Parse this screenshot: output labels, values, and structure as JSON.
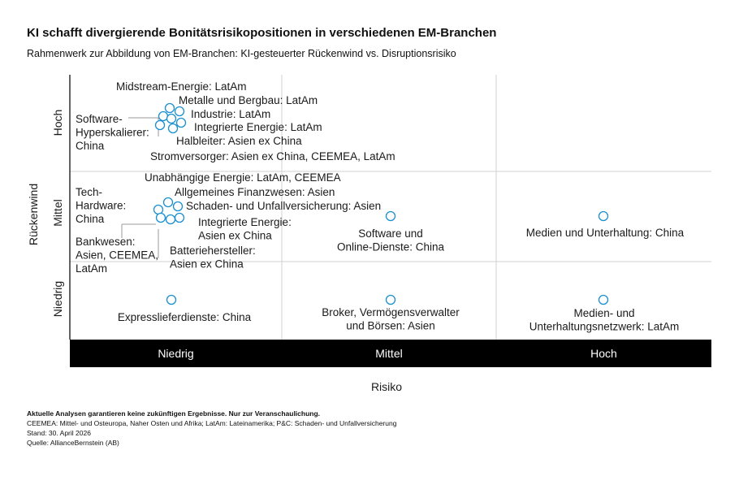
{
  "title": "KI schafft divergierende Bonitätsrisikopositionen in verschiedenen EM-Branchen",
  "subtitle": "Rahmenwerk zur Abbildung von EM-Branchen: KI-gesteuerter Rückenwind vs. Disruptionsrisiko",
  "chart_data": {
    "type": "scatter",
    "xlabel": "Risiko",
    "ylabel": "Rückenwind",
    "x_categories": [
      "Niedrig",
      "Mittel",
      "Hoch"
    ],
    "y_categories": [
      "Niedrig",
      "Mittel",
      "Hoch"
    ],
    "grid": true,
    "points": [
      {
        "x": "Niedrig",
        "y": "Hoch",
        "label": "Midstream-Energie: LatAm"
      },
      {
        "x": "Niedrig",
        "y": "Hoch",
        "label": "Metalle und Bergbau: LatAm"
      },
      {
        "x": "Niedrig",
        "y": "Hoch",
        "label": "Industrie: LatAm"
      },
      {
        "x": "Niedrig",
        "y": "Hoch",
        "label": "Integrierte Energie: LatAm"
      },
      {
        "x": "Niedrig",
        "y": "Hoch",
        "label": "Halbleiter: Asien ex China"
      },
      {
        "x": "Niedrig",
        "y": "Hoch",
        "label": "Stromversorger: Asien ex China, CEEMEA, LatAm"
      },
      {
        "x": "Niedrig",
        "y": "Hoch",
        "label": "Software-Hyperskalierer: China"
      },
      {
        "x": "Niedrig",
        "y": "Mittel",
        "label": "Unabhängige Energie: LatAm, CEEMEA"
      },
      {
        "x": "Niedrig",
        "y": "Mittel",
        "label": "Allgemeines Finanzwesen: Asien"
      },
      {
        "x": "Niedrig",
        "y": "Mittel",
        "label": "Schaden- und Unfallversicherung: Asien"
      },
      {
        "x": "Niedrig",
        "y": "Mittel",
        "label": "Integrierte Energie: Asien ex China"
      },
      {
        "x": "Niedrig",
        "y": "Mittel",
        "label": "Batteriehersteller: Asien ex China"
      },
      {
        "x": "Niedrig",
        "y": "Mittel",
        "label": "Tech-Hardware: China"
      },
      {
        "x": "Niedrig",
        "y": "Mittel",
        "label": "Bankwesen: Asien, CEEMEA, LatAm"
      },
      {
        "x": "Mittel",
        "y": "Mittel",
        "label": "Software und Online-Dienste: China"
      },
      {
        "x": "Hoch",
        "y": "Mittel",
        "label": "Medien und Unterhaltung: China"
      },
      {
        "x": "Niedrig",
        "y": "Niedrig",
        "label": "Expresslieferdienste: China"
      },
      {
        "x": "Mittel",
        "y": "Niedrig",
        "label": "Broker, Vermögensverwalter und Börsen: Asien"
      },
      {
        "x": "Hoch",
        "y": "Niedrig",
        "label": "Medien- und Unterhaltungsnetzwerk: LatAm"
      }
    ],
    "point_color": "#1a8fd1"
  },
  "footer": {
    "disclaimer": "Aktuelle Analysen garantieren keine zukünftigen Ergebnisse. Nur zur Veranschaulichung.",
    "abbreviations": "CEEMEA: Mittel- und Osteuropa, Naher Osten und Afrika; LatAm: Lateinamerika; P&C: Schaden- und Unfallversicherung",
    "date": "Stand: 30. April 2026",
    "source": "Quelle: AllianceBernstein (AB)"
  }
}
